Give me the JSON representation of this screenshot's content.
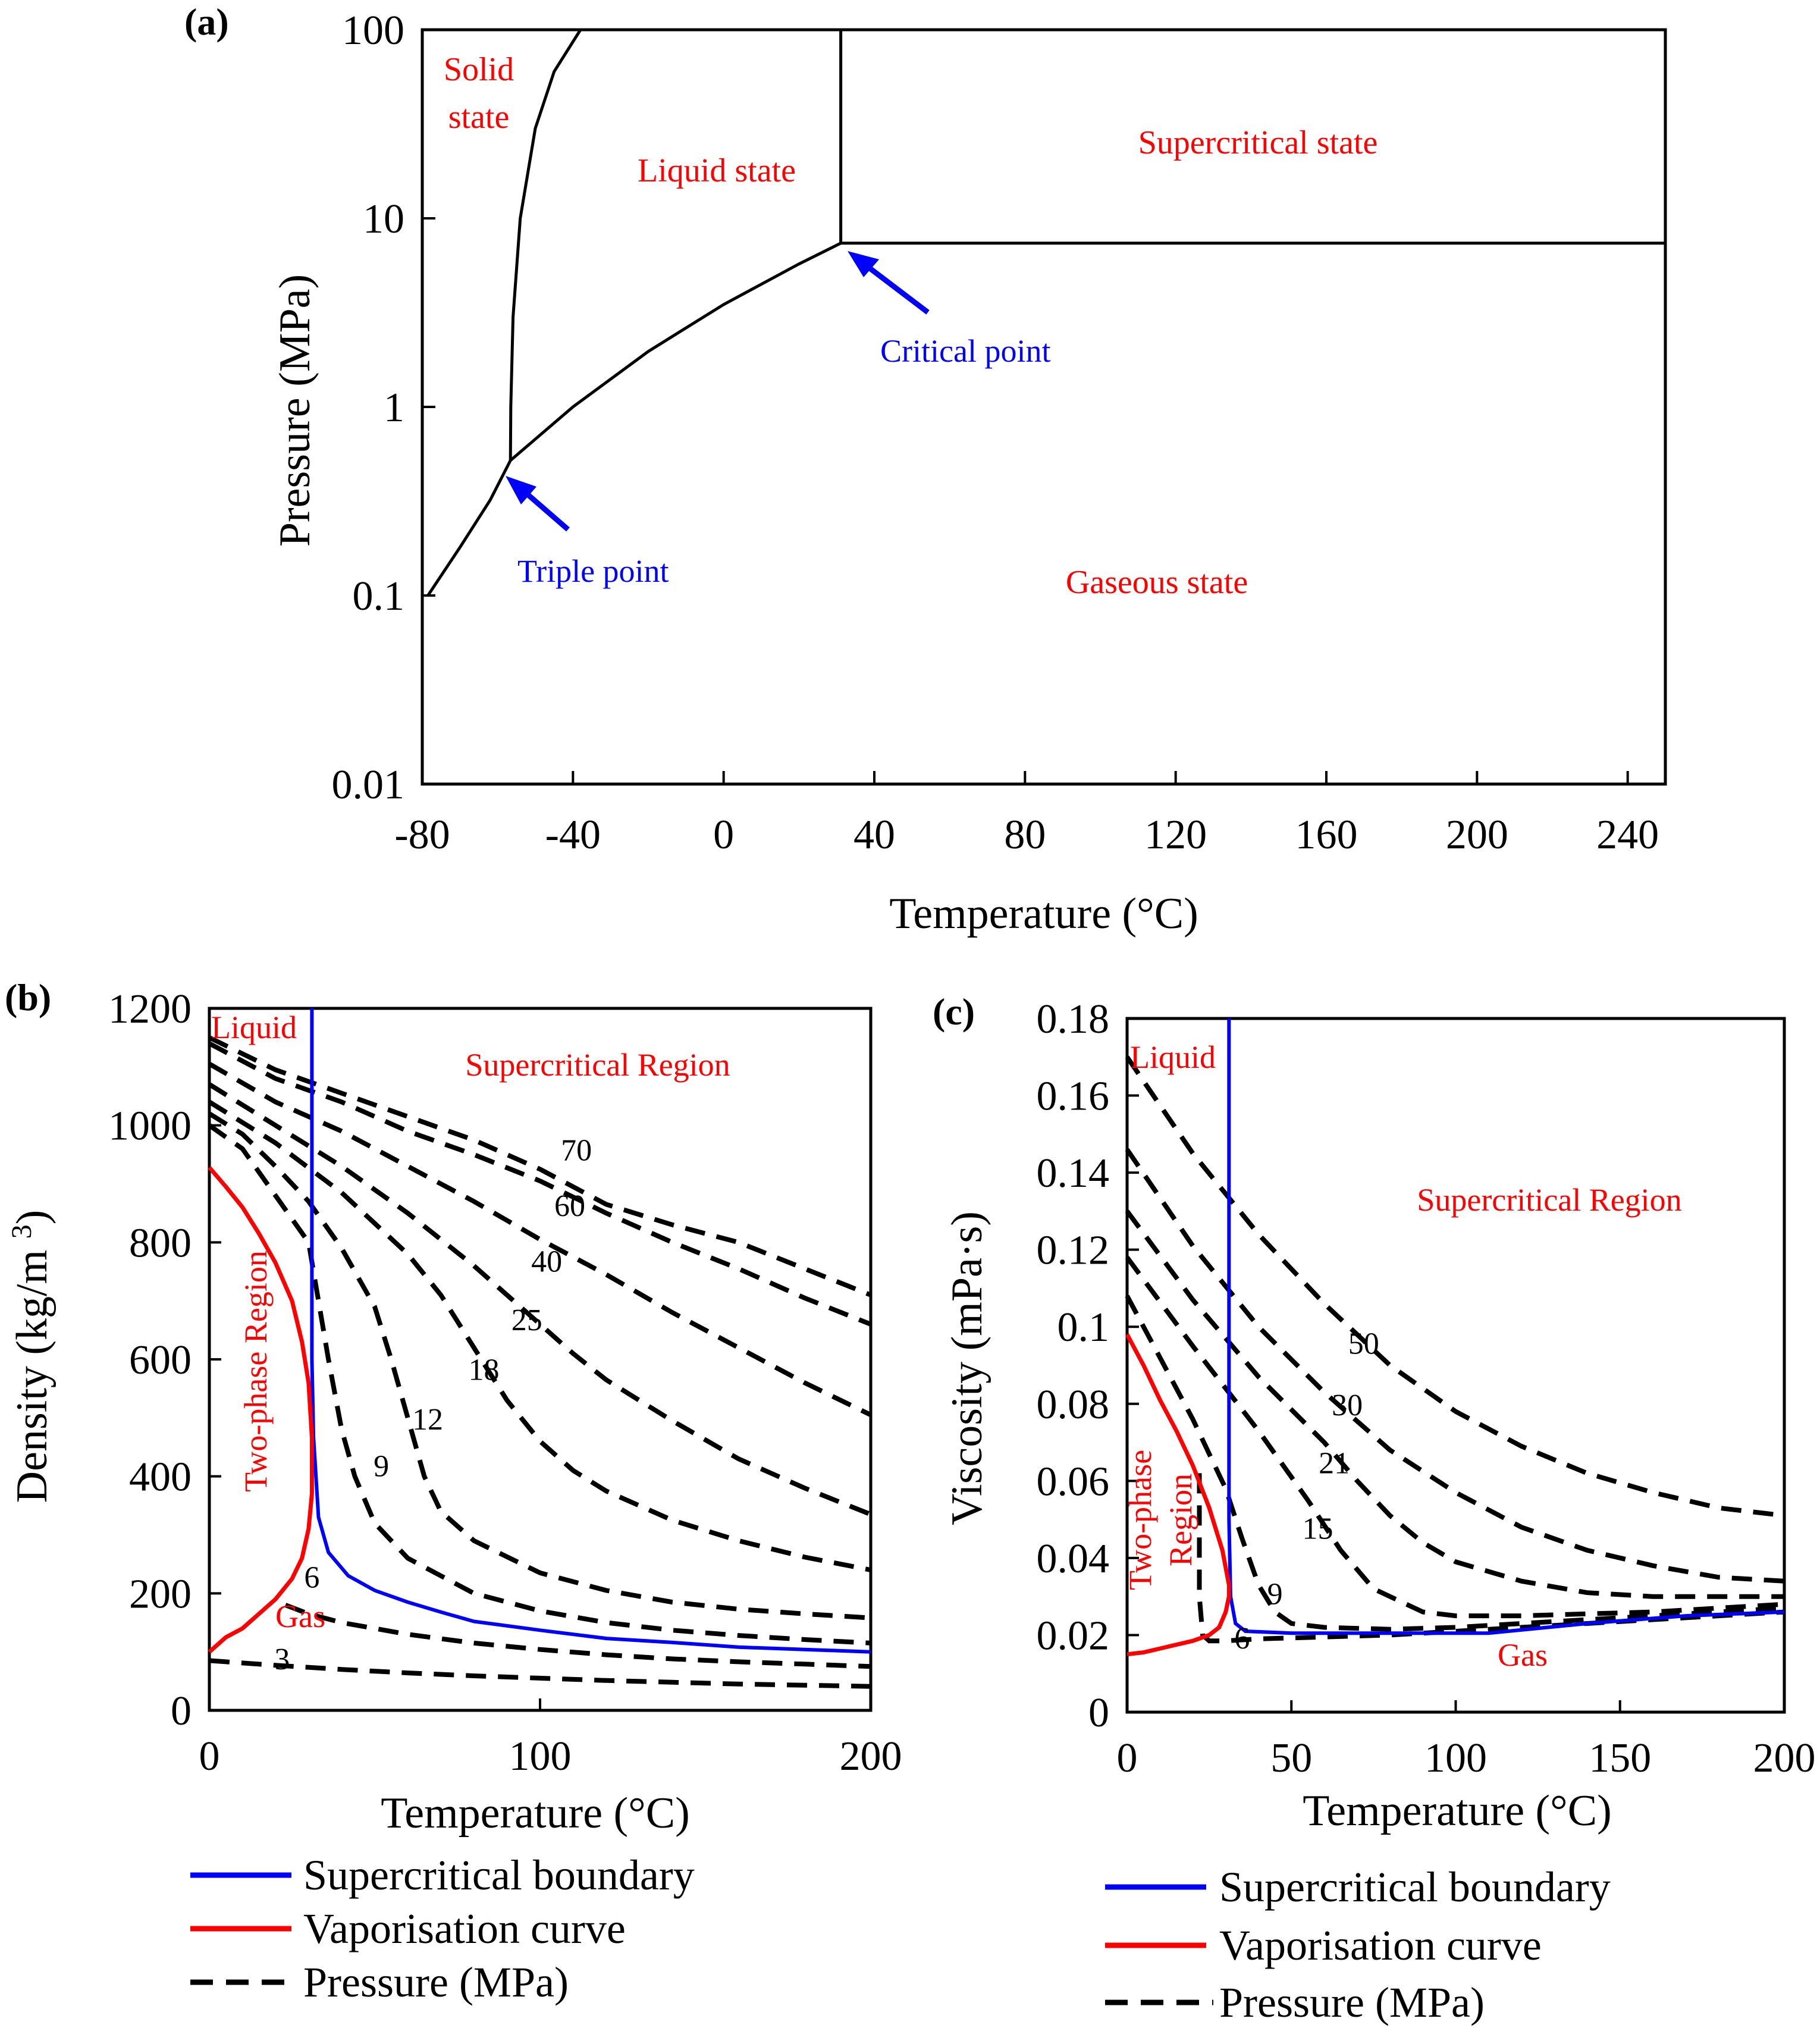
{
  "chart_data": [
    {
      "id": "a",
      "type": "line",
      "panel_label": "(a)",
      "xlabel": "Temperature (°C)",
      "ylabel": "Pressure (MPa)",
      "xlim": [
        -80,
        250
      ],
      "ylim": [
        0.01,
        100
      ],
      "y_scale": "log",
      "x_ticks": [
        -80,
        -40,
        0,
        40,
        80,
        120,
        160,
        200,
        240
      ],
      "y_ticks": [
        0.01,
        0.1,
        1,
        10,
        100
      ],
      "x_tick_labels": [
        "-80",
        "-40",
        "0",
        "40",
        "80",
        "120",
        "160",
        "200",
        "240"
      ],
      "y_tick_labels": [
        "0.01",
        "0.1",
        "1",
        "10",
        "100"
      ],
      "series": [
        {
          "role": "sublimation",
          "x": [
            -78.5,
            -70,
            -62,
            -56.6
          ],
          "y": [
            0.1,
            0.18,
            0.32,
            0.52
          ]
        },
        {
          "role": "melting",
          "x": [
            -56.6,
            -56.5,
            -55.9,
            -54,
            -50,
            -45,
            -38
          ],
          "y": [
            0.52,
            1,
            3,
            10,
            30,
            60,
            100
          ]
        },
        {
          "role": "vaporisation",
          "x": [
            -56.6,
            -40,
            -20,
            0,
            20,
            31.1
          ],
          "y": [
            0.52,
            1.0,
            1.97,
            3.49,
            5.73,
            7.38
          ]
        },
        {
          "role": "critical-isotherm",
          "x": [
            31.1,
            31.1
          ],
          "y": [
            7.38,
            100
          ]
        },
        {
          "role": "critical-isobar",
          "x": [
            31.1,
            250
          ],
          "y": [
            7.38,
            7.38
          ]
        }
      ],
      "regions": [
        {
          "text": "Solid\nstate"
        },
        {
          "text": "Liquid state"
        },
        {
          "text": "Supercritical state"
        },
        {
          "text": "Gaseous state"
        }
      ],
      "annotations": [
        {
          "text": "Critical point",
          "x": 31.1,
          "y": 7.38
        },
        {
          "text": "Triple point",
          "x": -56.6,
          "y": 0.52
        }
      ]
    },
    {
      "id": "b",
      "type": "line",
      "panel_label": "(b)",
      "xlabel": "Temperature (°C)",
      "ylabel": "Density (kg/m³)",
      "xlim": [
        0,
        200
      ],
      "ylim": [
        0,
        1200
      ],
      "x_ticks": [
        0,
        100,
        200
      ],
      "y_ticks": [
        0,
        200,
        400,
        600,
        800,
        1000,
        1200
      ],
      "x_tick_labels": [
        "0",
        "100",
        "200"
      ],
      "y_tick_labels": [
        "0",
        "200",
        "400",
        "600",
        "800",
        "1000",
        "1200"
      ],
      "series": [
        {
          "name": "Supercritical boundary",
          "color": "#0000ff",
          "x": [
            31,
            31,
            31.5,
            33,
            36,
            42,
            50,
            60,
            70,
            80,
            100,
            120,
            140,
            160,
            180,
            200
          ],
          "y": [
            1200,
            600,
            467,
            330,
            270,
            230,
            205,
            185,
            168,
            152,
            137,
            123,
            116,
            108,
            104,
            100
          ]
        },
        {
          "name": "Vaporisation curve",
          "color": "#ff0000",
          "x": [
            0,
            5,
            10,
            15,
            20,
            25,
            28,
            30,
            31,
            31,
            30,
            28,
            25,
            20,
            15,
            10,
            5,
            0
          ],
          "y": [
            928,
            895,
            860,
            815,
            765,
            700,
            630,
            560,
            467,
            370,
            310,
            260,
            225,
            190,
            165,
            140,
            125,
            100
          ]
        },
        {
          "role": "isobar",
          "label": "3",
          "x": [
            0,
            20,
            40,
            60,
            80,
            100,
            120,
            140,
            160,
            180,
            200
          ],
          "y": [
            85,
            77,
            70,
            64,
            59,
            55,
            51,
            48,
            45,
            43,
            41
          ]
        },
        {
          "role": "isobar",
          "label": "6",
          "x": [
            23,
            30,
            40,
            60,
            80,
            100,
            120,
            140,
            160,
            180,
            200
          ],
          "y": [
            180,
            165,
            150,
            130,
            115,
            104,
            95,
            88,
            83,
            79,
            75
          ]
        },
        {
          "role": "isobar",
          "label": "9",
          "x": [
            0,
            10,
            20,
            30,
            33,
            36,
            40,
            44,
            50,
            60,
            80,
            100,
            120,
            140,
            160,
            180,
            200
          ],
          "y": [
            1000,
            960,
            880,
            800,
            700,
            600,
            480,
            400,
            320,
            260,
            200,
            170,
            150,
            137,
            128,
            121,
            115
          ]
        },
        {
          "role": "isobar",
          "label": "12",
          "x": [
            0,
            10,
            20,
            30,
            40,
            50,
            55,
            60,
            65,
            70,
            80,
            100,
            120,
            140,
            160,
            180,
            200
          ],
          "y": [
            1020,
            985,
            930,
            870,
            790,
            690,
            600,
            500,
            400,
            340,
            290,
            235,
            205,
            185,
            173,
            165,
            158
          ]
        },
        {
          "role": "isobar",
          "label": "18",
          "x": [
            0,
            20,
            40,
            60,
            70,
            80,
            90,
            100,
            110,
            120,
            140,
            160,
            180,
            200
          ],
          "y": [
            1040,
            970,
            885,
            780,
            710,
            620,
            530,
            460,
            410,
            375,
            325,
            290,
            262,
            240
          ]
        },
        {
          "role": "isobar",
          "label": "25",
          "x": [
            0,
            20,
            40,
            60,
            80,
            100,
            110,
            120,
            140,
            160,
            180,
            200
          ],
          "y": [
            1070,
            1000,
            930,
            850,
            760,
            660,
            610,
            565,
            495,
            430,
            380,
            335
          ]
        },
        {
          "role": "isobar",
          "label": "40",
          "x": [
            0,
            20,
            40,
            60,
            80,
            100,
            120,
            140,
            160,
            180,
            200
          ],
          "y": [
            1105,
            1040,
            990,
            930,
            870,
            805,
            745,
            680,
            620,
            560,
            505
          ]
        },
        {
          "role": "isobar",
          "label": "60",
          "x": [
            0,
            20,
            40,
            60,
            80,
            100,
            120,
            140,
            160,
            180,
            200
          ],
          "y": [
            1140,
            1080,
            1040,
            990,
            950,
            905,
            850,
            800,
            755,
            705,
            660
          ]
        },
        {
          "role": "isobar",
          "label": "70",
          "x": [
            0,
            20,
            40,
            60,
            80,
            100,
            120,
            140,
            160,
            180,
            200
          ],
          "y": [
            1150,
            1095,
            1055,
            1015,
            975,
            925,
            865,
            830,
            800,
            755,
            710
          ]
        }
      ],
      "regions": [
        {
          "text": "Liquid"
        },
        {
          "text": "Supercritical Region"
        },
        {
          "text": "Two-phase Region"
        },
        {
          "text": "Gas"
        }
      ]
    },
    {
      "id": "c",
      "type": "line",
      "panel_label": "(c)",
      "xlabel": "Temperature (°C)",
      "ylabel": "Viscosity (mPa·s)",
      "xlim": [
        0,
        200
      ],
      "ylim": [
        0,
        0.18
      ],
      "x_ticks": [
        0,
        50,
        100,
        150,
        200
      ],
      "y_ticks": [
        0,
        0.02,
        0.04,
        0.06,
        0.08,
        0.1,
        0.12,
        0.14,
        0.16,
        0.18
      ],
      "x_tick_labels": [
        "0",
        "50",
        "100",
        "150",
        "200"
      ],
      "y_tick_labels": [
        "0",
        "0.02",
        "0.04",
        "0.06",
        "0.08",
        "0.1",
        "0.12",
        "0.14",
        "0.16",
        "0.18"
      ],
      "series": [
        {
          "name": "Supercritical boundary",
          "color": "#0000ff",
          "x": [
            31,
            31,
            31.5,
            33,
            36,
            50,
            80,
            110,
            140,
            170,
            200
          ],
          "y": [
            0.18,
            0.05,
            0.03,
            0.023,
            0.021,
            0.0205,
            0.0205,
            0.0205,
            0.023,
            0.025,
            0.026
          ]
        },
        {
          "name": "Vaporisation curve",
          "color": "#ff0000",
          "x": [
            0,
            5,
            10,
            15,
            20,
            25,
            29,
            31,
            31,
            30,
            28,
            25,
            20,
            15,
            10,
            5,
            0
          ],
          "y": [
            0.098,
            0.09,
            0.081,
            0.073,
            0.064,
            0.053,
            0.042,
            0.033,
            0.03,
            0.026,
            0.022,
            0.02,
            0.0185,
            0.0175,
            0.0165,
            0.0155,
            0.015
          ]
        },
        {
          "role": "isobar",
          "label": "6",
          "x": [
            22,
            22,
            23,
            25,
            30,
            40,
            60,
            80,
            100,
            120,
            140,
            160,
            180,
            200
          ],
          "y": [
            0.062,
            0.03,
            0.02,
            0.0185,
            0.0185,
            0.019,
            0.0195,
            0.02,
            0.021,
            0.022,
            0.023,
            0.024,
            0.025,
            0.026
          ]
        },
        {
          "role": "isobar",
          "label": "9",
          "x": [
            0,
            10,
            20,
            30,
            35,
            40,
            45,
            50,
            60,
            80,
            100,
            120,
            140,
            160,
            180,
            200
          ],
          "y": [
            0.108,
            0.092,
            0.076,
            0.058,
            0.045,
            0.033,
            0.026,
            0.023,
            0.022,
            0.0215,
            0.022,
            0.023,
            0.024,
            0.025,
            0.026,
            0.027
          ]
        },
        {
          "role": "isobar",
          "label": "15",
          "x": [
            0,
            20,
            40,
            55,
            65,
            75,
            90,
            100,
            120,
            140,
            160,
            180,
            200
          ],
          "y": [
            0.118,
            0.095,
            0.073,
            0.055,
            0.042,
            0.032,
            0.026,
            0.025,
            0.025,
            0.0255,
            0.026,
            0.027,
            0.028
          ]
        },
        {
          "role": "isobar",
          "label": "21",
          "x": [
            0,
            20,
            40,
            60,
            70,
            80,
            90,
            100,
            120,
            140,
            160,
            180,
            200
          ],
          "y": [
            0.13,
            0.107,
            0.087,
            0.07,
            0.06,
            0.051,
            0.044,
            0.039,
            0.034,
            0.031,
            0.03,
            0.03,
            0.03
          ]
        },
        {
          "role": "isobar",
          "label": "30",
          "x": [
            0,
            20,
            40,
            60,
            80,
            100,
            120,
            140,
            160,
            180,
            200
          ],
          "y": [
            0.146,
            0.121,
            0.1,
            0.083,
            0.068,
            0.057,
            0.048,
            0.042,
            0.038,
            0.035,
            0.034
          ]
        },
        {
          "role": "isobar",
          "label": "50",
          "x": [
            0,
            20,
            40,
            60,
            80,
            100,
            120,
            140,
            160,
            180,
            200
          ],
          "y": [
            0.17,
            0.145,
            0.124,
            0.106,
            0.09,
            0.078,
            0.069,
            0.062,
            0.057,
            0.053,
            0.051
          ]
        }
      ],
      "regions": [
        {
          "text": "Liquid"
        },
        {
          "text": "Supercritical Region"
        },
        {
          "text": "Two-phase\nRegion"
        },
        {
          "text": "Gas"
        }
      ]
    }
  ],
  "legends": [
    {
      "panel": "b",
      "entries": [
        {
          "label": "Supercritical boundary",
          "color": "#0000ff",
          "style": "solid"
        },
        {
          "label": "Vaporisation curve",
          "color": "#ff0000",
          "style": "solid"
        },
        {
          "label": "Pressure (MPa)",
          "color": "#000000",
          "style": "dashed"
        }
      ]
    },
    {
      "panel": "c",
      "entries": [
        {
          "label": "Supercritical boundary",
          "color": "#0000ff",
          "style": "solid"
        },
        {
          "label": "Vaporisation curve",
          "color": "#ff0000",
          "style": "solid"
        },
        {
          "label": "Pressure (MPa)",
          "color": "#000000",
          "style": "dashed"
        }
      ]
    }
  ]
}
